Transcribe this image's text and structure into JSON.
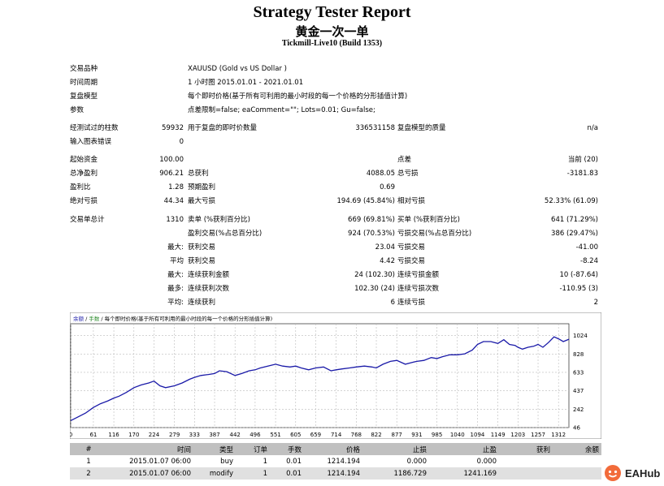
{
  "header": {
    "title": "Strategy Tester Report",
    "ea_name": "黄金一次一单",
    "server": "Tickmill-Live10 (Build 1353)"
  },
  "settings": [
    {
      "label": "交易品种",
      "value": "XAUUSD (Gold vs US Dollar )"
    },
    {
      "label": "时间周期",
      "value": "1 小时图 2015.01.01 - 2021.01.01"
    },
    {
      "label": "复盘模型",
      "value": "每个即时价格(基于所有可利用的最小时段的每一个价格的分形插值计算)"
    },
    {
      "label": "参数",
      "value": "点差限制=false; eaComment=\"\"; Lots=0.01; Gu=false;"
    }
  ],
  "bars": {
    "label": "经测试过的柱数",
    "value": "59932",
    "ticks_label": "用于复盘的即时价数量",
    "ticks_value": "336531158",
    "quality_label": "复盘模型的质量",
    "quality_value": "n/a"
  },
  "errors": {
    "label": "输入图表错误",
    "value": "0"
  },
  "stats": {
    "initial_deposit_label": "起始资金",
    "initial_deposit": "100.00",
    "spread_label": "点差",
    "spread": "当前 (20)",
    "net_profit_label": "总净盈利",
    "net_profit": "906.21",
    "gross_profit_label": "总获利",
    "gross_profit": "4088.05",
    "gross_loss_label": "总亏损",
    "gross_loss": "-3181.83",
    "profit_factor_label": "盈利比",
    "profit_factor": "1.28",
    "expected_payoff_label": "预期盈利",
    "expected_payoff": "0.69",
    "abs_dd_label": "绝对亏损",
    "abs_dd": "44.34",
    "max_dd_label": "最大亏损",
    "max_dd": "194.69 (45.84%)",
    "rel_dd_label": "相对亏损",
    "rel_dd": "52.33% (61.09)",
    "total_trades_label": "交易单总计",
    "total_trades": "1310",
    "short_label": "卖单 (%获利百分比)",
    "short": "669 (69.81%)",
    "long_label": "买单 (%获利百分比)",
    "long": "641 (71.29%)",
    "profit_trades_label": "盈利交易(%占总百分比)",
    "profit_trades": "924 (70.53%)",
    "loss_trades_label": "亏损交易(%占总百分比)",
    "loss_trades": "386 (29.47%)",
    "largest_prefix": "最大:",
    "largest_profit_label": "获利交易",
    "largest_profit": "23.04",
    "largest_loss_label": "亏损交易",
    "largest_loss": "-41.00",
    "average_prefix": "平均",
    "average_profit_label": "获利交易",
    "average_profit": "4.42",
    "average_loss_label": "亏损交易",
    "average_loss": "-8.24",
    "max_prefix": "最大:",
    "max_cons_wins_label": "连续获利金额",
    "max_cons_wins": "24 (102.30)",
    "max_cons_losses_label": "连续亏损金额",
    "max_cons_losses": "10 (-87.64)",
    "most_prefix": "最多:",
    "max_cons_profit_label": "连续获利次数",
    "max_cons_profit": "102.30 (24)",
    "max_cons_loss_label": "连续亏损次数",
    "max_cons_loss": "-110.95 (3)",
    "avg_prefix": "平均:",
    "avg_cons_wins_label": "连续获利",
    "avg_cons_wins": "6",
    "avg_cons_losses_label": "连续亏损",
    "avg_cons_losses": "2"
  },
  "chart_data": {
    "type": "line",
    "legend_balance": "余额",
    "legend_lots": "手数",
    "legend_model": "每个即时价格(基于所有可利用的最小时段的每一个价格的分形插值计算)",
    "x_ticks": [
      "0",
      "61",
      "116",
      "170",
      "224",
      "279",
      "333",
      "387",
      "442",
      "496",
      "551",
      "605",
      "659",
      "714",
      "768",
      "822",
      "877",
      "931",
      "985",
      "1040",
      "1094",
      "1149",
      "1203",
      "1257",
      "1312"
    ],
    "y_ticks": [
      "46",
      "242",
      "437",
      "633",
      "828",
      "1024"
    ],
    "ylim": [
      46,
      1150
    ],
    "xlim": [
      0,
      1340
    ],
    "grid": true,
    "series": [
      {
        "name": "余额",
        "color": "#1a1aa8",
        "points": [
          [
            0,
            120
          ],
          [
            20,
            160
          ],
          [
            40,
            200
          ],
          [
            61,
            260
          ],
          [
            80,
            300
          ],
          [
            100,
            330
          ],
          [
            116,
            360
          ],
          [
            130,
            380
          ],
          [
            150,
            420
          ],
          [
            170,
            470
          ],
          [
            190,
            500
          ],
          [
            210,
            520
          ],
          [
            224,
            540
          ],
          [
            240,
            490
          ],
          [
            255,
            470
          ],
          [
            279,
            490
          ],
          [
            300,
            520
          ],
          [
            320,
            560
          ],
          [
            333,
            580
          ],
          [
            350,
            600
          ],
          [
            370,
            610
          ],
          [
            387,
            620
          ],
          [
            400,
            650
          ],
          [
            420,
            640
          ],
          [
            442,
            600
          ],
          [
            460,
            620
          ],
          [
            480,
            650
          ],
          [
            496,
            660
          ],
          [
            510,
            680
          ],
          [
            530,
            700
          ],
          [
            551,
            720
          ],
          [
            570,
            700
          ],
          [
            590,
            690
          ],
          [
            605,
            700
          ],
          [
            620,
            680
          ],
          [
            640,
            660
          ],
          [
            659,
            680
          ],
          [
            680,
            690
          ],
          [
            700,
            650
          ],
          [
            714,
            660
          ],
          [
            730,
            670
          ],
          [
            750,
            680
          ],
          [
            768,
            690
          ],
          [
            790,
            700
          ],
          [
            810,
            690
          ],
          [
            822,
            680
          ],
          [
            840,
            720
          ],
          [
            860,
            750
          ],
          [
            877,
            760
          ],
          [
            900,
            720
          ],
          [
            920,
            740
          ],
          [
            931,
            750
          ],
          [
            950,
            760
          ],
          [
            970,
            790
          ],
          [
            985,
            780
          ],
          [
            1000,
            800
          ],
          [
            1020,
            820
          ],
          [
            1040,
            820
          ],
          [
            1060,
            830
          ],
          [
            1080,
            870
          ],
          [
            1094,
            930
          ],
          [
            1110,
            960
          ],
          [
            1130,
            960
          ],
          [
            1149,
            940
          ],
          [
            1165,
            980
          ],
          [
            1180,
            930
          ],
          [
            1195,
            920
          ],
          [
            1203,
            900
          ],
          [
            1215,
            880
          ],
          [
            1230,
            900
          ],
          [
            1245,
            910
          ],
          [
            1257,
            930
          ],
          [
            1270,
            900
          ],
          [
            1285,
            950
          ],
          [
            1300,
            1010
          ],
          [
            1312,
            990
          ],
          [
            1325,
            960
          ],
          [
            1340,
            985
          ]
        ]
      }
    ]
  },
  "deals": {
    "columns": [
      "#",
      "时间",
      "类型",
      "订单",
      "手数",
      "价格",
      "止损",
      "止盈",
      "获利",
      "余额"
    ],
    "rows": [
      [
        "1",
        "2015.01.07 06:00",
        "buy",
        "1",
        "0.01",
        "1214.194",
        "0.000",
        "0.000",
        "",
        ""
      ],
      [
        "2",
        "2015.01.07 06:00",
        "modify",
        "1",
        "0.01",
        "1214.194",
        "1186.729",
        "1241.169",
        "",
        ""
      ]
    ]
  },
  "watermark": {
    "text": "EAHub"
  }
}
